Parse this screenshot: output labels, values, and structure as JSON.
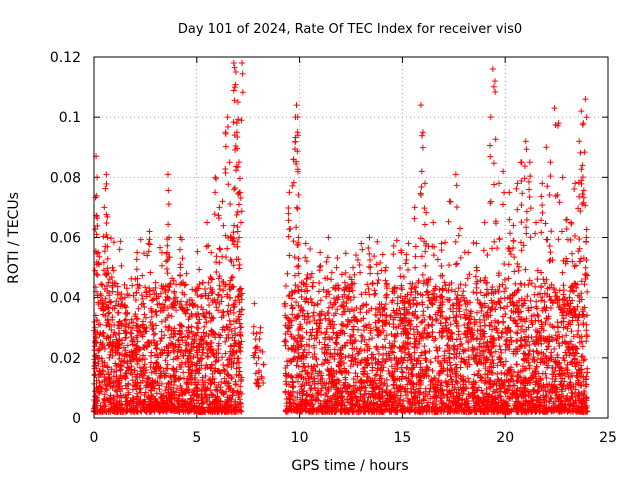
{
  "chart_data": {
    "type": "scatter",
    "title": "Day 101 of 2024, Rate Of TEC Index for receiver vis0",
    "xlabel": "GPS time / hours",
    "ylabel": "ROTI / TECUs",
    "xlim": [
      0,
      25
    ],
    "ylim": [
      0,
      0.12
    ],
    "x_ticks": [
      0,
      5,
      10,
      15,
      20,
      25
    ],
    "x_tick_labels": [
      "0",
      "5",
      "10",
      "15",
      "20",
      "25"
    ],
    "y_ticks": [
      0,
      0.02,
      0.04,
      0.06,
      0.08,
      0.1,
      0.12
    ],
    "y_tick_labels": [
      "0",
      "0.02",
      "0.04",
      "0.06",
      "0.08",
      "0.1",
      "0.12"
    ],
    "grid": true,
    "legend": "none",
    "marker": "+",
    "marker_color": "#ff0000",
    "series": [
      {
        "name": "ROTI",
        "x": [
          0.05,
          0.1,
          0.15,
          0.2,
          0.25,
          0.5,
          0.6,
          0.65,
          0.7,
          0.75,
          0.9,
          1.2,
          1.5,
          1.8,
          2.1,
          2.4,
          2.7,
          2.8,
          3.0,
          3.3,
          3.55,
          3.6,
          3.65,
          3.9,
          4.2,
          4.5,
          4.8,
          5.0,
          5.3,
          5.5,
          5.7,
          5.9,
          6.1,
          6.25,
          6.4,
          6.5,
          6.6,
          6.7,
          6.8,
          6.85,
          6.9,
          6.95,
          7.0,
          7.05,
          7.1,
          7.15,
          7.2,
          7.8,
          7.9,
          8.0,
          8.1,
          8.2,
          9.3,
          9.5,
          9.7,
          9.8,
          9.85,
          9.9,
          9.95,
          10.1,
          10.3,
          10.6,
          11.0,
          11.4,
          11.8,
          12.2,
          12.6,
          13.0,
          13.4,
          13.8,
          14.2,
          14.6,
          14.95,
          15.3,
          15.6,
          15.9,
          16.0,
          16.1,
          16.5,
          16.9,
          17.3,
          17.6,
          17.8,
          18.2,
          18.6,
          19.0,
          19.3,
          19.4,
          19.5,
          19.7,
          19.9,
          20.2,
          20.4,
          20.6,
          20.8,
          21.0,
          21.2,
          21.5,
          21.8,
          22.0,
          22.2,
          22.4,
          22.6,
          22.8,
          23.0,
          23.2,
          23.4,
          23.6,
          23.7,
          23.8,
          23.9,
          23.95
        ],
        "y": [
          0.03,
          0.087,
          0.08,
          0.055,
          0.02,
          0.07,
          0.081,
          0.06,
          0.045,
          0.02,
          0.05,
          0.035,
          0.04,
          0.03,
          0.055,
          0.038,
          0.062,
          0.025,
          0.045,
          0.032,
          0.055,
          0.081,
          0.06,
          0.042,
          0.06,
          0.048,
          0.038,
          0.03,
          0.045,
          0.065,
          0.055,
          0.08,
          0.07,
          0.072,
          0.095,
          0.1,
          0.085,
          0.06,
          0.118,
          0.11,
          0.115,
          0.095,
          0.105,
          0.085,
          0.075,
          0.065,
          0.118,
          0.038,
          0.028,
          0.02,
          0.03,
          0.022,
          0.038,
          0.075,
          0.086,
          0.1,
          0.104,
          0.095,
          0.06,
          0.045,
          0.058,
          0.048,
          0.055,
          0.06,
          0.05,
          0.045,
          0.05,
          0.058,
          0.06,
          0.048,
          0.05,
          0.042,
          0.055,
          0.058,
          0.07,
          0.104,
          0.095,
          0.078,
          0.065,
          0.058,
          0.072,
          0.081,
          0.063,
          0.055,
          0.058,
          0.065,
          0.1,
          0.116,
          0.112,
          0.078,
          0.082,
          0.075,
          0.064,
          0.078,
          0.085,
          0.092,
          0.085,
          0.065,
          0.078,
          0.09,
          0.085,
          0.103,
          0.098,
          0.08,
          0.066,
          0.065,
          0.078,
          0.092,
          0.102,
          0.098,
          0.106,
          0.06
        ],
        "dense_band": {
          "x_ranges": [
            [
              0,
              7.2
            ],
            [
              9.3,
              24.0
            ]
          ],
          "y_range": [
            0.002,
            0.045
          ]
        }
      }
    ]
  }
}
